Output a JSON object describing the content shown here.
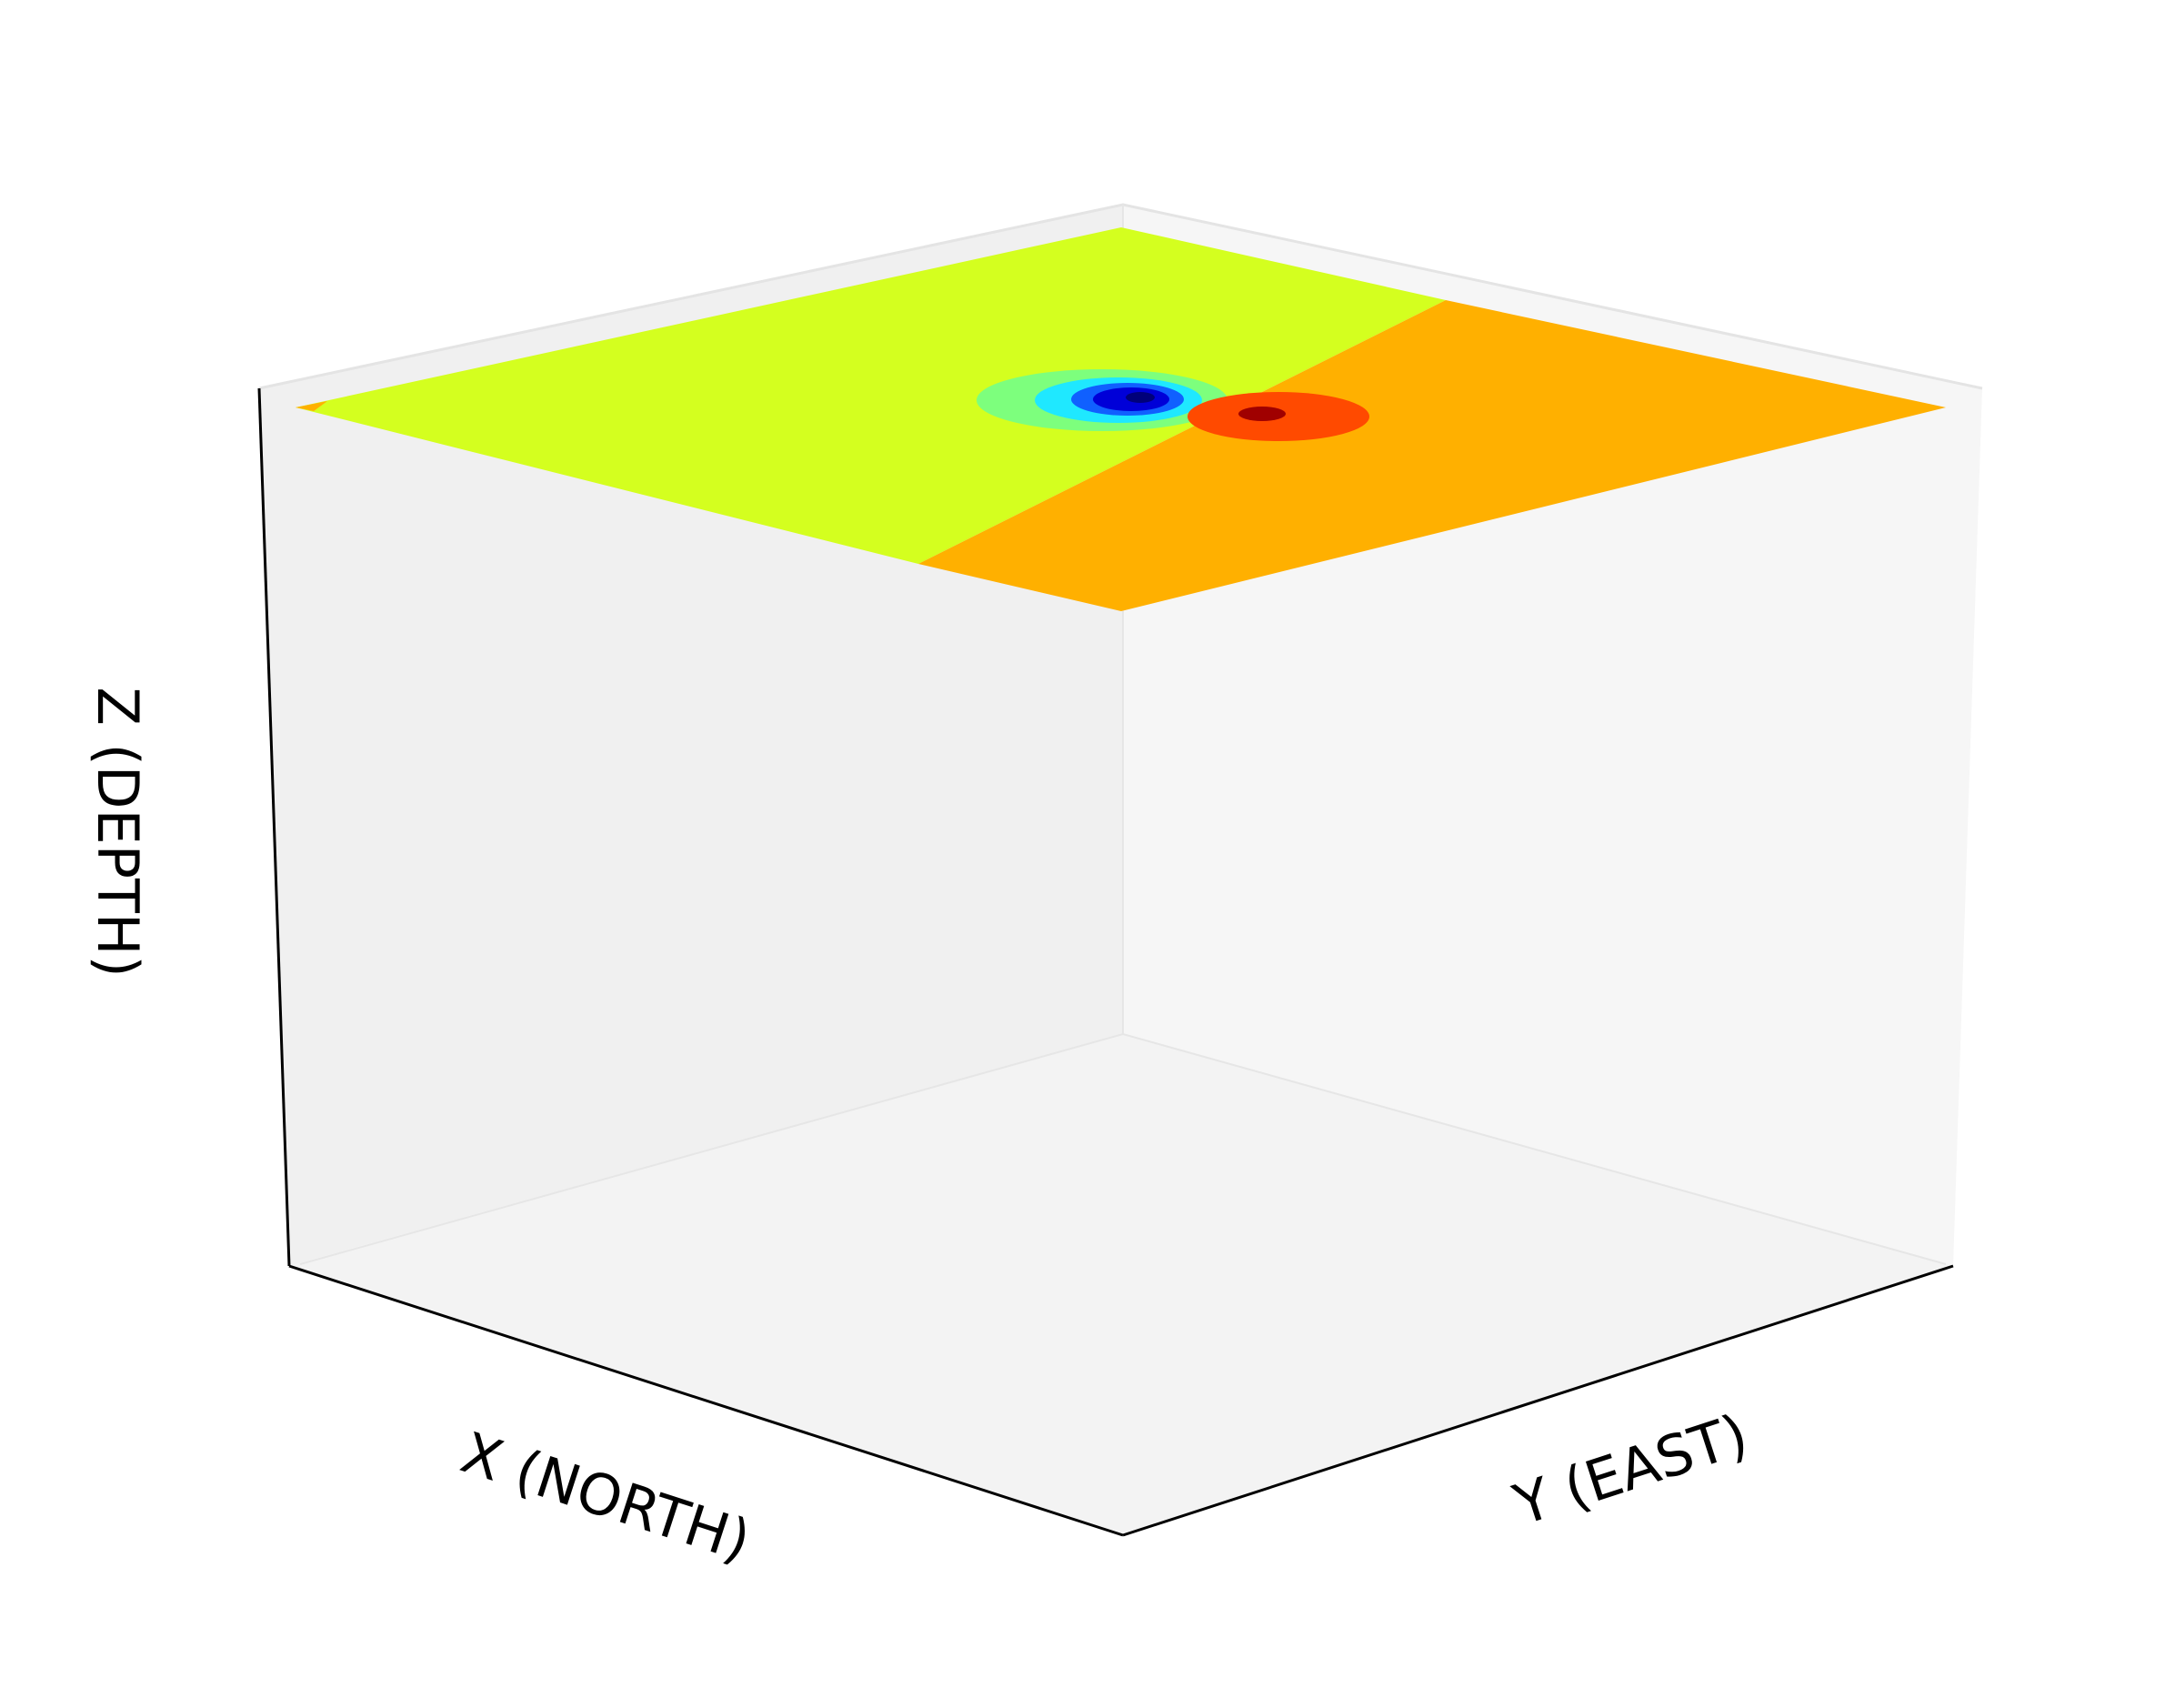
{
  "chart_data": {
    "type": "contour3d",
    "xlabel": "X (NORTH)",
    "ylabel": "Y (EAST)",
    "zlabel": "Z (DEPTH)",
    "grid": false,
    "colormap": "jet",
    "surface": "top plane, filled contours",
    "colors": {
      "pane_left": "#f0f0f0",
      "pane_right": "#f6f6f6",
      "pane_floor": "#f3f3f3",
      "axis_line": "#000000",
      "background_level": "#d4ff1f",
      "positive_level": "#ffb000",
      "anomaly_negative": [
        "#7dff7d",
        "#1fe8ff",
        "#1060ff",
        "#0000d8",
        "#00007a"
      ],
      "anomaly_positive": [
        "#ff4a00",
        "#a00000"
      ]
    }
  }
}
